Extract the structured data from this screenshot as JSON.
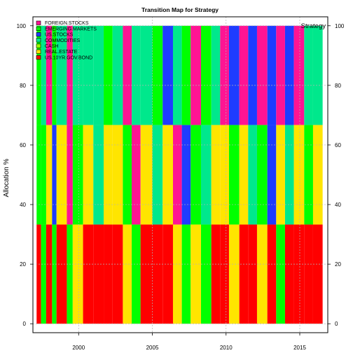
{
  "chart_data": {
    "type": "area",
    "stacked": true,
    "title": "Transition Map for Strategy",
    "corner_label": "Strategy",
    "ylabel": "Allocation %",
    "xlabel": "",
    "xlim": [
      1996.9,
      2016.9
    ],
    "ylim": [
      -3,
      103
    ],
    "x_ticks": [
      2000,
      2005,
      2010,
      2015
    ],
    "y_ticks": [
      0,
      20,
      40,
      60,
      80,
      100
    ],
    "grid": true,
    "legend_position": "top-left",
    "series": [
      {
        "name": "FOREIGN.STOCKS",
        "color": "#FF1493"
      },
      {
        "name": "EMERGING.MARKETS",
        "color": "#00FF00"
      },
      {
        "name": "US.STOCKS",
        "color": "#1E3CFF"
      },
      {
        "name": "COMMODITIES",
        "color": "#00E88C"
      },
      {
        "name": "CASH",
        "color": "#9AFF00"
      },
      {
        "name": "REAL.ESTATE",
        "color": "#FFE500"
      },
      {
        "name": "US.10YR.GOV.BOND",
        "color": "#FF0000"
      }
    ],
    "stack_layers": [
      {
        "from": 0,
        "to": 33.3,
        "label": "bottom third"
      },
      {
        "from": 33.3,
        "to": 66.7,
        "label": "middle third"
      },
      {
        "from": 66.7,
        "to": 100,
        "label": "top third"
      }
    ],
    "segments": [
      {
        "start": 1997.15,
        "end": 1997.45,
        "colors": [
          "US.10YR.GOV.BOND",
          "EMERGING.MARKETS",
          "EMERGING.MARKETS"
        ]
      },
      {
        "start": 1997.45,
        "end": 1997.8,
        "colors": [
          "EMERGING.MARKETS",
          "EMERGING.MARKETS",
          "COMMODITIES"
        ]
      },
      {
        "start": 1997.8,
        "end": 1998.2,
        "colors": [
          "US.10YR.GOV.BOND",
          "REAL.ESTATE",
          "FOREIGN.STOCKS"
        ]
      },
      {
        "start": 1998.2,
        "end": 1998.5,
        "colors": [
          "EMERGING.MARKETS",
          "US.STOCKS",
          "EMERGING.MARKETS"
        ]
      },
      {
        "start": 1998.5,
        "end": 1999.2,
        "colors": [
          "US.10YR.GOV.BOND",
          "REAL.ESTATE",
          "COMMODITIES"
        ]
      },
      {
        "start": 1999.2,
        "end": 1999.6,
        "colors": [
          "EMERGING.MARKETS",
          "FOREIGN.STOCKS",
          "FOREIGN.STOCKS"
        ]
      },
      {
        "start": 1999.6,
        "end": 2000.3,
        "colors": [
          "REAL.ESTATE",
          "EMERGING.MARKETS",
          "COMMODITIES"
        ]
      },
      {
        "start": 2000.3,
        "end": 2001.0,
        "colors": [
          "US.10YR.GOV.BOND",
          "REAL.ESTATE",
          "COMMODITIES"
        ]
      },
      {
        "start": 2001.0,
        "end": 2001.7,
        "colors": [
          "US.10YR.GOV.BOND",
          "COMMODITIES",
          "COMMODITIES"
        ]
      },
      {
        "start": 2001.7,
        "end": 2002.3,
        "colors": [
          "US.10YR.GOV.BOND",
          "REAL.ESTATE",
          "EMERGING.MARKETS"
        ]
      },
      {
        "start": 2002.3,
        "end": 2003.0,
        "colors": [
          "US.10YR.GOV.BOND",
          "REAL.ESTATE",
          "COMMODITIES"
        ]
      },
      {
        "start": 2003.0,
        "end": 2003.6,
        "colors": [
          "REAL.ESTATE",
          "EMERGING.MARKETS",
          "FOREIGN.STOCKS"
        ]
      },
      {
        "start": 2003.6,
        "end": 2004.2,
        "colors": [
          "EMERGING.MARKETS",
          "FOREIGN.STOCKS",
          "COMMODITIES"
        ]
      },
      {
        "start": 2004.2,
        "end": 2005.0,
        "colors": [
          "US.10YR.GOV.BOND",
          "REAL.ESTATE",
          "COMMODITIES"
        ]
      },
      {
        "start": 2005.0,
        "end": 2005.7,
        "colors": [
          "US.10YR.GOV.BOND",
          "COMMODITIES",
          "EMERGING.MARKETS"
        ]
      },
      {
        "start": 2005.7,
        "end": 2006.4,
        "colors": [
          "US.10YR.GOV.BOND",
          "REAL.ESTATE",
          "US.STOCKS"
        ]
      },
      {
        "start": 2006.4,
        "end": 2007.0,
        "colors": [
          "REAL.ESTATE",
          "FOREIGN.STOCKS",
          "COMMODITIES"
        ]
      },
      {
        "start": 2007.0,
        "end": 2007.6,
        "colors": [
          "EMERGING.MARKETS",
          "US.STOCKS",
          "EMERGING.MARKETS"
        ]
      },
      {
        "start": 2007.6,
        "end": 2008.3,
        "colors": [
          "REAL.ESTATE",
          "EMERGING.MARKETS",
          "FOREIGN.STOCKS"
        ]
      },
      {
        "start": 2008.3,
        "end": 2009.0,
        "colors": [
          "EMERGING.MARKETS",
          "COMMODITIES",
          "EMERGING.MARKETS"
        ]
      },
      {
        "start": 2009.0,
        "end": 2009.6,
        "colors": [
          "US.10YR.GOV.BOND",
          "REAL.ESTATE",
          "COMMODITIES"
        ]
      },
      {
        "start": 2009.6,
        "end": 2010.2,
        "colors": [
          "US.10YR.GOV.BOND",
          "REAL.ESTATE",
          "FOREIGN.STOCKS"
        ]
      },
      {
        "start": 2010.2,
        "end": 2010.9,
        "colors": [
          "REAL.ESTATE",
          "EMERGING.MARKETS",
          "US.STOCKS"
        ]
      },
      {
        "start": 2010.9,
        "end": 2011.5,
        "colors": [
          "US.10YR.GOV.BOND",
          "REAL.ESTATE",
          "FOREIGN.STOCKS"
        ]
      },
      {
        "start": 2011.5,
        "end": 2012.1,
        "colors": [
          "US.10YR.GOV.BOND",
          "COMMODITIES",
          "US.STOCKS"
        ]
      },
      {
        "start": 2012.1,
        "end": 2012.8,
        "colors": [
          "REAL.ESTATE",
          "EMERGING.MARKETS",
          "FOREIGN.STOCKS"
        ]
      },
      {
        "start": 2012.8,
        "end": 2013.4,
        "colors": [
          "US.10YR.GOV.BOND",
          "US.STOCKS",
          "US.STOCKS"
        ]
      },
      {
        "start": 2013.4,
        "end": 2014.0,
        "colors": [
          "EMERGING.MARKETS",
          "REAL.ESTATE",
          "FOREIGN.STOCKS"
        ]
      },
      {
        "start": 2014.0,
        "end": 2014.6,
        "colors": [
          "US.10YR.GOV.BOND",
          "COMMODITIES",
          "US.STOCKS"
        ]
      },
      {
        "start": 2014.6,
        "end": 2015.3,
        "colors": [
          "US.10YR.GOV.BOND",
          "REAL.ESTATE",
          "FOREIGN.STOCKS"
        ]
      },
      {
        "start": 2015.3,
        "end": 2015.9,
        "colors": [
          "US.10YR.GOV.BOND",
          "EMERGING.MARKETS",
          "COMMODITIES"
        ]
      },
      {
        "start": 2015.9,
        "end": 2016.55,
        "colors": [
          "US.10YR.GOV.BOND",
          "REAL.ESTATE",
          "COMMODITIES"
        ]
      }
    ]
  }
}
